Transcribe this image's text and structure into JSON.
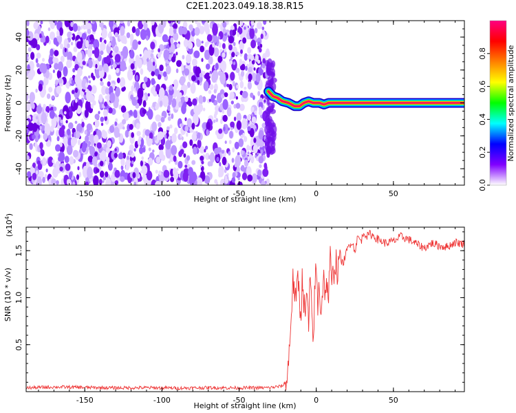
{
  "figure": {
    "title": "C2E1.2023.049.18.38.R15"
  },
  "chart_data": [
    {
      "type": "heatmap",
      "title": "C2E1.2023.049.18.38.R15",
      "xlabel": "Height of straight line (km)",
      "ylabel": "Frequency (Hz)",
      "xlim": [
        -188,
        96
      ],
      "ylim": [
        -50,
        50
      ],
      "x_ticks": [
        -150,
        -100,
        -50,
        0,
        50
      ],
      "y_ticks": [
        -40,
        -20,
        0,
        20,
        40
      ],
      "noise_region_x": [
        -188,
        -31
      ],
      "signal_trace": [
        {
          "x": -31,
          "y": 7
        },
        {
          "x": -28,
          "y": 4
        },
        {
          "x": -25,
          "y": 3
        },
        {
          "x": -22,
          "y": 1
        },
        {
          "x": -18,
          "y": 0
        },
        {
          "x": -14,
          "y": -2
        },
        {
          "x": -11,
          "y": -2
        },
        {
          "x": -8,
          "y": 0
        },
        {
          "x": -5,
          "y": 1
        },
        {
          "x": -2,
          "y": 0
        },
        {
          "x": 2,
          "y": 0
        },
        {
          "x": 5,
          "y": -1
        },
        {
          "x": 8,
          "y": 0
        },
        {
          "x": 12,
          "y": 0
        },
        {
          "x": 96,
          "y": 0
        }
      ],
      "colorbar": {
        "label": "Normalized spectral amplitude",
        "range": [
          0,
          1
        ],
        "ticks": [
          0.0,
          0.2,
          0.4,
          0.6,
          0.8
        ],
        "tick_labels": [
          "0.0",
          "0.2",
          "0.4",
          "0.6",
          "0.8"
        ],
        "colors": [
          "#ffffff",
          "#8000ff",
          "#0000ff",
          "#00ffff",
          "#00ff00",
          "#ffff00",
          "#ff8000",
          "#ff0000",
          "#ff0080"
        ]
      },
      "grid": false
    },
    {
      "type": "line",
      "xlabel": "Height of straight line (km)",
      "ylabel": "SNR (10 * v/v)",
      "y_multiplier_label": "(x10",
      "y_multiplier_exp": "4",
      "y_multiplier_close": ")",
      "xlim": [
        -188,
        96
      ],
      "ylim": [
        0,
        17500
      ],
      "x_ticks": [
        -150,
        -100,
        -50,
        0,
        50
      ],
      "y_ticks": [
        5000,
        10000,
        15000
      ],
      "y_tick_labels": [
        "0.5",
        "1.0",
        "1.5"
      ],
      "line_color": "#ee3333",
      "series": [
        {
          "x": [
            -188,
            -170,
            -150,
            -130,
            -110,
            -90,
            -70,
            -50,
            -30,
            -22,
            -19,
            -18,
            -17,
            -16,
            -15,
            -14,
            -13,
            -12,
            -11,
            -10,
            -9,
            -8,
            -7,
            -6,
            -5,
            -4,
            -3,
            -2,
            -1,
            0,
            1,
            2,
            3,
            4,
            5,
            6,
            7,
            8,
            9,
            10,
            11,
            12,
            13,
            14,
            15,
            17,
            19,
            21,
            23,
            25,
            27,
            29,
            31,
            33,
            35,
            40,
            45,
            50,
            55,
            60,
            65,
            70,
            75,
            80,
            85,
            90,
            96
          ],
          "values": [
            400,
            500,
            450,
            400,
            420,
            380,
            420,
            400,
            420,
            600,
            1200,
            3000,
            6000,
            9000,
            12000,
            10500,
            9000,
            13000,
            10000,
            8000,
            12500,
            9500,
            7500,
            11000,
            6500,
            12000,
            8500,
            5000,
            10500,
            13500,
            9000,
            11500,
            8500,
            10500,
            13000,
            9500,
            12000,
            10000,
            14500,
            11000,
            12500,
            13500,
            14000,
            12000,
            15000,
            13500,
            14500,
            15500,
            16000,
            15000,
            16500,
            16000,
            17000,
            16500,
            16800,
            16200,
            15800,
            16000,
            16500,
            16200,
            15700,
            15300,
            15800,
            15500,
            15400,
            15900,
            15700
          ]
        }
      ],
      "grid": false
    }
  ]
}
